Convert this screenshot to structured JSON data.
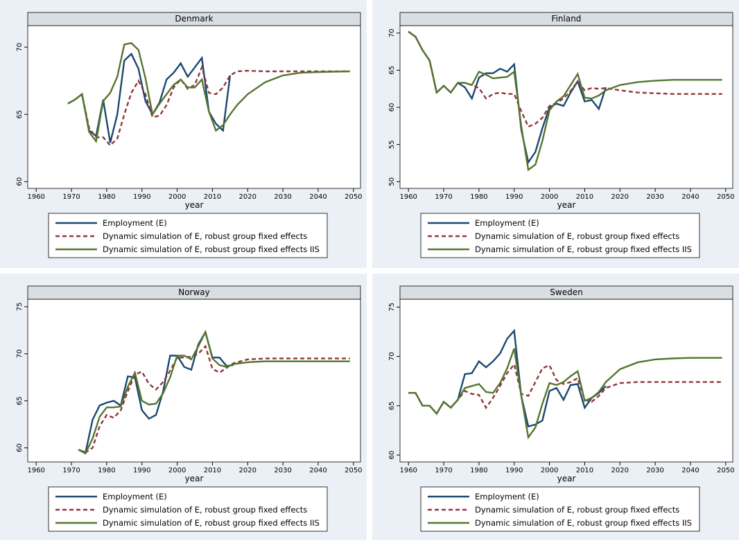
{
  "chart_data": [
    {
      "type": "line",
      "title": "Denmark",
      "x_label": "year",
      "x": [
        1969,
        1971,
        1973,
        1975,
        1977,
        1979,
        1981,
        1983,
        1985,
        1987,
        1989,
        1991,
        1993,
        1995,
        1997,
        1999,
        2001,
        2003,
        2005,
        2007,
        2009,
        2011,
        2013,
        2015,
        2017,
        2020,
        2025,
        2030,
        2035,
        2040,
        2049
      ],
      "series": [
        {
          "name": "Employment (E)",
          "color": "#1a476f",
          "values": [
            65.8,
            66.1,
            66.5,
            63.8,
            63.4,
            66.1,
            62.9,
            65.0,
            69.0,
            69.5,
            68.4,
            66.0,
            65.0,
            65.9,
            67.6,
            68.1,
            68.8,
            67.8,
            68.5,
            69.2,
            65.2,
            64.3,
            63.8,
            67.9,
            null,
            null,
            null,
            null,
            null,
            null,
            null
          ]
        },
        {
          "name": "Dynamic simulation of E, robust group fixed effects",
          "color": "#90353b",
          "dashed": true,
          "values": [
            65.8,
            66.1,
            66.5,
            64.0,
            63.3,
            63.3,
            62.7,
            63.2,
            65.0,
            66.6,
            67.5,
            66.5,
            64.8,
            64.9,
            65.7,
            67.0,
            67.6,
            66.9,
            67.2,
            68.5,
            66.6,
            66.5,
            67.0,
            67.9,
            68.2,
            68.25,
            68.2,
            68.2,
            68.2,
            68.2,
            68.2
          ]
        },
        {
          "name": "Dynamic simulation of E, robust group fixed effects IIS",
          "color": "#55752f",
          "values": [
            65.8,
            66.1,
            66.5,
            63.7,
            63.0,
            66.0,
            66.6,
            67.8,
            70.2,
            70.3,
            69.8,
            67.7,
            65.0,
            65.8,
            66.5,
            67.2,
            67.6,
            67.0,
            67.0,
            67.6,
            65.2,
            63.8,
            64.2,
            65.0,
            65.7,
            66.5,
            67.4,
            67.9,
            68.1,
            68.15,
            68.2
          ]
        }
      ],
      "xlim": [
        1957.6,
        2052
      ],
      "ylim": [
        59.5,
        71.6
      ],
      "xticks": [
        1960,
        1970,
        1980,
        1990,
        2000,
        2010,
        2020,
        2030,
        2040,
        2050
      ],
      "yticks": [
        60,
        65,
        70
      ]
    },
    {
      "type": "line",
      "title": "Finland",
      "x_label": "year",
      "x": [
        1960,
        1962,
        1964,
        1966,
        1968,
        1970,
        1972,
        1974,
        1976,
        1978,
        1980,
        1982,
        1984,
        1986,
        1988,
        1990,
        1992,
        1994,
        1996,
        1998,
        2000,
        2002,
        2004,
        2006,
        2008,
        2010,
        2012,
        2014,
        2016,
        2020,
        2025,
        2030,
        2035,
        2040,
        2049
      ],
      "series": [
        {
          "name": "Employment (E)",
          "color": "#1a476f",
          "values": [
            70.2,
            69.5,
            67.7,
            66.3,
            62.0,
            62.9,
            62.0,
            63.3,
            62.7,
            61.2,
            64.0,
            64.6,
            64.6,
            65.2,
            64.8,
            65.8,
            57.0,
            52.6,
            54.0,
            57.2,
            60.0,
            60.5,
            60.2,
            62.0,
            63.5,
            60.8,
            61.0,
            59.8,
            62.7,
            null,
            null,
            null,
            null,
            null,
            null
          ]
        },
        {
          "name": "Dynamic simulation of E, robust group fixed effects",
          "color": "#90353b",
          "dashed": true,
          "values": [
            70.2,
            69.5,
            67.7,
            66.3,
            62.0,
            62.9,
            62.0,
            63.3,
            63.3,
            63.0,
            62.6,
            61.2,
            61.8,
            62.0,
            61.8,
            61.8,
            59.5,
            57.4,
            57.8,
            58.6,
            60.2,
            60.6,
            61.2,
            62.2,
            63.5,
            62.3,
            62.6,
            62.5,
            62.6,
            62.3,
            62.0,
            61.9,
            61.8,
            61.8,
            61.8
          ]
        },
        {
          "name": "Dynamic simulation of E, robust group fixed effects IIS",
          "color": "#55752f",
          "values": [
            70.2,
            69.5,
            67.7,
            66.3,
            62.0,
            62.9,
            62.0,
            63.3,
            63.3,
            63.0,
            64.8,
            64.4,
            63.9,
            64.0,
            64.1,
            64.8,
            57.5,
            51.6,
            52.3,
            55.5,
            59.6,
            60.8,
            61.5,
            63.0,
            64.5,
            61.3,
            61.2,
            61.6,
            62.3,
            63.0,
            63.4,
            63.6,
            63.7,
            63.7,
            63.7
          ]
        }
      ],
      "xlim": [
        1957.6,
        2052
      ],
      "ylim": [
        49.1,
        71
      ],
      "xticks": [
        1960,
        1970,
        1980,
        1990,
        2000,
        2010,
        2020,
        2030,
        2040,
        2050
      ],
      "yticks": [
        50,
        55,
        60,
        65,
        70
      ]
    },
    {
      "type": "line",
      "title": "Norway",
      "x_label": "year",
      "x": [
        1972,
        1974,
        1976,
        1978,
        1980,
        1982,
        1984,
        1986,
        1988,
        1990,
        1992,
        1994,
        1996,
        1998,
        2000,
        2002,
        2004,
        2006,
        2008,
        2010,
        2012,
        2014,
        2016,
        2020,
        2025,
        2030,
        2035,
        2040,
        2049
      ],
      "series": [
        {
          "name": "Employment (E)",
          "color": "#1a476f",
          "values": [
            59.8,
            59.5,
            63.0,
            64.5,
            64.8,
            65.0,
            64.5,
            67.6,
            67.5,
            64.0,
            63.1,
            63.5,
            66.0,
            69.8,
            69.8,
            68.6,
            68.3,
            71.0,
            72.3,
            69.6,
            69.6,
            68.7,
            68.8,
            null,
            null,
            null,
            null,
            null,
            null
          ]
        },
        {
          "name": "Dynamic simulation of E, robust group fixed effects",
          "color": "#90353b",
          "dashed": true,
          "values": [
            59.8,
            59.5,
            60.0,
            62.3,
            63.5,
            63.2,
            64.0,
            66.0,
            67.8,
            68.1,
            66.8,
            66.2,
            67.0,
            68.2,
            69.6,
            69.6,
            69.7,
            70.0,
            70.8,
            68.4,
            68.0,
            68.5,
            69.0,
            69.4,
            69.5,
            69.5,
            69.5,
            69.5,
            69.5
          ]
        },
        {
          "name": "Dynamic simulation of E, robust group fixed effects IIS",
          "color": "#55752f",
          "values": [
            59.8,
            59.4,
            61.0,
            63.3,
            64.3,
            64.3,
            64.4,
            66.5,
            68.0,
            65.0,
            64.6,
            64.7,
            65.8,
            67.5,
            69.8,
            69.8,
            69.4,
            70.8,
            72.3,
            69.5,
            68.8,
            68.6,
            68.9,
            69.1,
            69.2,
            69.2,
            69.2,
            69.2,
            69.2
          ]
        }
      ],
      "xlim": [
        1957.6,
        2052
      ],
      "ylim": [
        58.5,
        75.8
      ],
      "xticks": [
        1960,
        1970,
        1980,
        1990,
        2000,
        2010,
        2020,
        2030,
        2040,
        2050
      ],
      "yticks": [
        60,
        65,
        70,
        75
      ]
    },
    {
      "type": "line",
      "title": "Sweden",
      "x_label": "year",
      "x": [
        1960,
        1962,
        1964,
        1966,
        1968,
        1970,
        1972,
        1974,
        1976,
        1978,
        1980,
        1982,
        1984,
        1986,
        1988,
        1990,
        1992,
        1994,
        1996,
        1998,
        2000,
        2002,
        2004,
        2006,
        2008,
        2010,
        2012,
        2014,
        2016,
        2020,
        2025,
        2030,
        2035,
        2040,
        2049
      ],
      "series": [
        {
          "name": "Employment (E)",
          "color": "#1a476f",
          "values": [
            66.3,
            66.3,
            65.0,
            65.0,
            64.2,
            65.4,
            64.8,
            65.6,
            68.2,
            68.3,
            69.5,
            68.9,
            69.5,
            70.3,
            71.8,
            72.6,
            66.0,
            62.9,
            63.1,
            63.5,
            66.5,
            66.8,
            65.6,
            67.1,
            67.2,
            64.8,
            65.8,
            66.3,
            67.0,
            null,
            null,
            null,
            null,
            null,
            null
          ]
        },
        {
          "name": "Dynamic simulation of E, robust group fixed effects",
          "color": "#90353b",
          "dashed": true,
          "values": [
            66.3,
            66.3,
            65.0,
            65.0,
            64.2,
            65.4,
            64.8,
            65.6,
            66.5,
            66.2,
            66.1,
            64.8,
            65.8,
            67.0,
            68.3,
            69.2,
            66.2,
            66.0,
            67.4,
            68.8,
            69.1,
            67.6,
            67.2,
            67.4,
            67.8,
            65.6,
            65.4,
            66.0,
            66.8,
            67.3,
            67.4,
            67.4,
            67.4,
            67.4,
            67.4
          ]
        },
        {
          "name": "Dynamic simulation of E, robust group fixed effects IIS",
          "color": "#55752f",
          "values": [
            66.3,
            66.3,
            65.0,
            65.0,
            64.2,
            65.4,
            64.8,
            65.6,
            66.8,
            67.0,
            67.2,
            66.4,
            66.3,
            67.3,
            68.8,
            70.8,
            66.0,
            61.8,
            62.8,
            65.2,
            67.3,
            67.1,
            67.4,
            68.0,
            68.5,
            65.5,
            65.8,
            66.4,
            67.4,
            68.7,
            69.4,
            69.7,
            69.8,
            69.85,
            69.85
          ]
        }
      ],
      "xlim": [
        1957.6,
        2052
      ],
      "ylim": [
        59.3,
        75.8
      ],
      "xticks": [
        1960,
        1970,
        1980,
        1990,
        2000,
        2010,
        2020,
        2030,
        2040,
        2050
      ],
      "yticks": [
        60,
        65,
        70,
        75
      ]
    }
  ]
}
